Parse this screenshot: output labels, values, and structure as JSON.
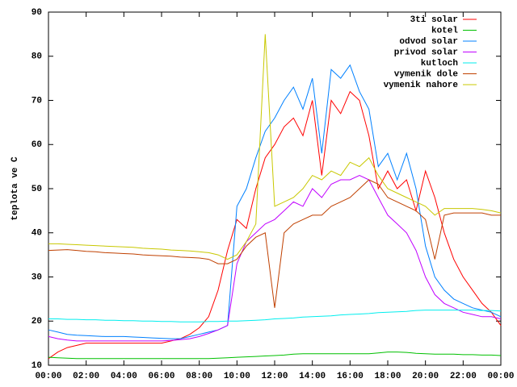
{
  "chart_data": {
    "type": "line",
    "ylabel": "teplota ve C",
    "x": [
      0,
      0.5,
      1,
      1.5,
      2,
      2.5,
      3,
      3.5,
      4,
      4.5,
      5,
      5.5,
      6,
      6.5,
      7,
      7.5,
      8,
      8.5,
      9,
      9.5,
      10,
      10.5,
      11,
      11.5,
      12,
      12.5,
      13,
      13.5,
      14,
      14.5,
      15,
      15.5,
      16,
      16.5,
      17,
      17.5,
      18,
      18.5,
      19,
      19.5,
      20,
      20.5,
      21,
      21.5,
      22,
      22.5,
      23,
      23.5,
      24
    ],
    "xlim": [
      0,
      24
    ],
    "xticks": [
      {
        "value": 0,
        "label": "00:00"
      },
      {
        "value": 2,
        "label": "02:00"
      },
      {
        "value": 4,
        "label": "04:00"
      },
      {
        "value": 6,
        "label": "06:00"
      },
      {
        "value": 8,
        "label": "08:00"
      },
      {
        "value": 10,
        "label": "10:00"
      },
      {
        "value": 12,
        "label": "12:00"
      },
      {
        "value": 14,
        "label": "14:00"
      },
      {
        "value": 16,
        "label": "16:00"
      },
      {
        "value": 18,
        "label": "18:00"
      },
      {
        "value": 20,
        "label": "20:00"
      },
      {
        "value": 22,
        "label": "22:00"
      },
      {
        "value": 24,
        "label": "00:00"
      }
    ],
    "ylim": [
      10,
      90
    ],
    "yticks": [
      10,
      20,
      30,
      40,
      50,
      60,
      70,
      80,
      90
    ],
    "legend": "upper right",
    "series": [
      {
        "name": "3ti solar",
        "color": "#ff0000",
        "values": [
          11.5,
          13,
          14,
          14.5,
          15,
          15,
          15,
          15,
          15,
          15,
          15,
          15,
          15,
          15.5,
          16,
          17,
          18.5,
          21,
          27,
          36,
          43,
          41,
          50,
          57,
          60,
          64,
          66,
          62,
          70,
          53,
          70,
          67,
          72,
          70,
          62,
          50,
          54,
          50,
          52,
          45,
          54,
          48,
          40,
          34,
          30,
          27,
          24,
          22,
          19
        ]
      },
      {
        "name": "kotel",
        "color": "#00c000",
        "values": [
          11.8,
          11.7,
          11.6,
          11.5,
          11.5,
          11.5,
          11.5,
          11.5,
          11.5,
          11.5,
          11.5,
          11.5,
          11.5,
          11.5,
          11.5,
          11.5,
          11.5,
          11.5,
          11.6,
          11.7,
          11.8,
          11.9,
          12,
          12.1,
          12.2,
          12.3,
          12.5,
          12.6,
          12.6,
          12.6,
          12.6,
          12.6,
          12.6,
          12.6,
          12.6,
          12.8,
          13,
          13,
          12.9,
          12.7,
          12.6,
          12.5,
          12.5,
          12.5,
          12.4,
          12.4,
          12.3,
          12.3,
          12.2
        ]
      },
      {
        "name": "odvod solar",
        "color": "#0080ff",
        "values": [
          18,
          17.5,
          17,
          16.8,
          16.7,
          16.6,
          16.5,
          16.5,
          16.5,
          16.4,
          16.3,
          16.2,
          16.1,
          16,
          16,
          16.5,
          17,
          17.5,
          18,
          19,
          46,
          50,
          57,
          63,
          66,
          70,
          73,
          68,
          75,
          58,
          77,
          75,
          78,
          72,
          68,
          55,
          58,
          52,
          58,
          50,
          37,
          30,
          27,
          25,
          24,
          23,
          22.5,
          22,
          21
        ]
      },
      {
        "name": "privod solar",
        "color": "#c000ff",
        "values": [
          16.5,
          16,
          15.7,
          15.5,
          15.5,
          15.5,
          15.5,
          15.5,
          15.5,
          15.5,
          15.5,
          15.5,
          15.5,
          15.6,
          15.8,
          16,
          16.5,
          17.2,
          18,
          19,
          33,
          38,
          40,
          42,
          43,
          45,
          47,
          46,
          50,
          48,
          51,
          52,
          52,
          53,
          52,
          48,
          44,
          42,
          40,
          36,
          30,
          26,
          24,
          23,
          22,
          21.5,
          21,
          21,
          20.5
        ]
      },
      {
        "name": "kutloch",
        "color": "#00eeee",
        "values": [
          20.5,
          20.5,
          20.4,
          20.4,
          20.3,
          20.3,
          20.2,
          20.2,
          20.1,
          20.1,
          20,
          20,
          19.9,
          19.9,
          19.8,
          19.8,
          19.8,
          19.9,
          19.9,
          20,
          20,
          20.1,
          20.2,
          20.3,
          20.5,
          20.6,
          20.7,
          20.9,
          21,
          21.1,
          21.2,
          21.4,
          21.5,
          21.6,
          21.7,
          21.9,
          22,
          22.1,
          22.2,
          22.4,
          22.5,
          22.5,
          22.5,
          22.5,
          22.5,
          22.5,
          22.4,
          22.4,
          22.3
        ]
      },
      {
        "name": "vymenik dole",
        "color": "#c04000",
        "values": [
          36,
          36.1,
          36.2,
          36,
          35.8,
          35.7,
          35.5,
          35.4,
          35.3,
          35.2,
          35,
          34.9,
          34.8,
          34.7,
          34.5,
          34.4,
          34.3,
          34,
          33,
          33,
          34,
          37,
          39,
          40,
          23,
          40,
          42,
          43,
          44,
          44,
          46,
          47,
          48,
          50,
          52,
          51,
          48,
          47,
          46,
          45,
          43,
          34,
          44,
          44.5,
          44.5,
          44.5,
          44.5,
          44,
          44
        ]
      },
      {
        "name": "vymenik nahore",
        "color": "#c8c800",
        "values": [
          37.5,
          37.5,
          37.4,
          37.3,
          37.2,
          37.1,
          37,
          36.9,
          36.8,
          36.7,
          36.5,
          36.4,
          36.3,
          36.1,
          36,
          35.9,
          35.7,
          35.5,
          35,
          34,
          35,
          38,
          42,
          85,
          46,
          47,
          48,
          50,
          53,
          52,
          54,
          53,
          56,
          55,
          57,
          53,
          50,
          49,
          48,
          47,
          46,
          44,
          45.5,
          45.5,
          45.5,
          45.5,
          45.3,
          45,
          44.5
        ]
      }
    ]
  }
}
